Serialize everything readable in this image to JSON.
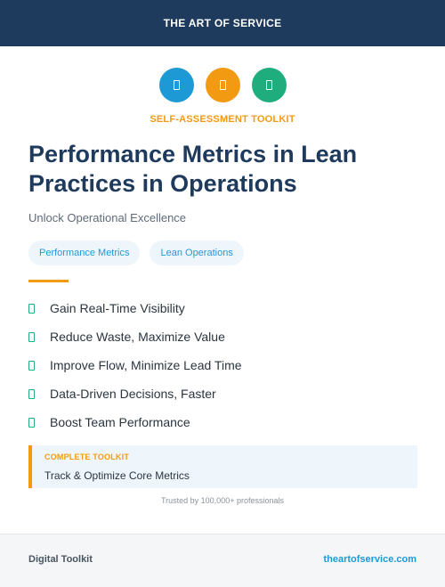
{
  "header": {
    "brand": "THE ART OF SERVICE"
  },
  "icons": [
    {
      "name": "blue-circle-icon",
      "color": "#1d9ad6"
    },
    {
      "name": "orange-circle-icon",
      "color": "#f29b12"
    },
    {
      "name": "green-circle-icon",
      "color": "#1fad7d"
    }
  ],
  "kicker": "SELF-ASSESSMENT TOOLKIT",
  "title": "Performance Metrics in Lean Practices in Operations",
  "subtitle": "Unlock Operational Excellence",
  "tags": [
    "Performance Metrics",
    "Lean Operations"
  ],
  "benefits": [
    "Gain Real-Time Visibility",
    "Reduce Waste, Maximize Value",
    "Improve Flow, Minimize Lead Time",
    "Data-Driven Decisions, Faster",
    "Boost Team Performance"
  ],
  "callout": {
    "kicker": "COMPLETE TOOLKIT",
    "text": "Track & Optimize Core Metrics"
  },
  "trusted": "Trusted by 100,000+ professionals",
  "footer": {
    "left": "Digital Toolkit",
    "right": "theartofservice.com"
  },
  "colors": {
    "navy": "#1e3a5c",
    "orange": "#f29b12",
    "blue": "#1d9ad6",
    "green": "#1fad7d"
  }
}
